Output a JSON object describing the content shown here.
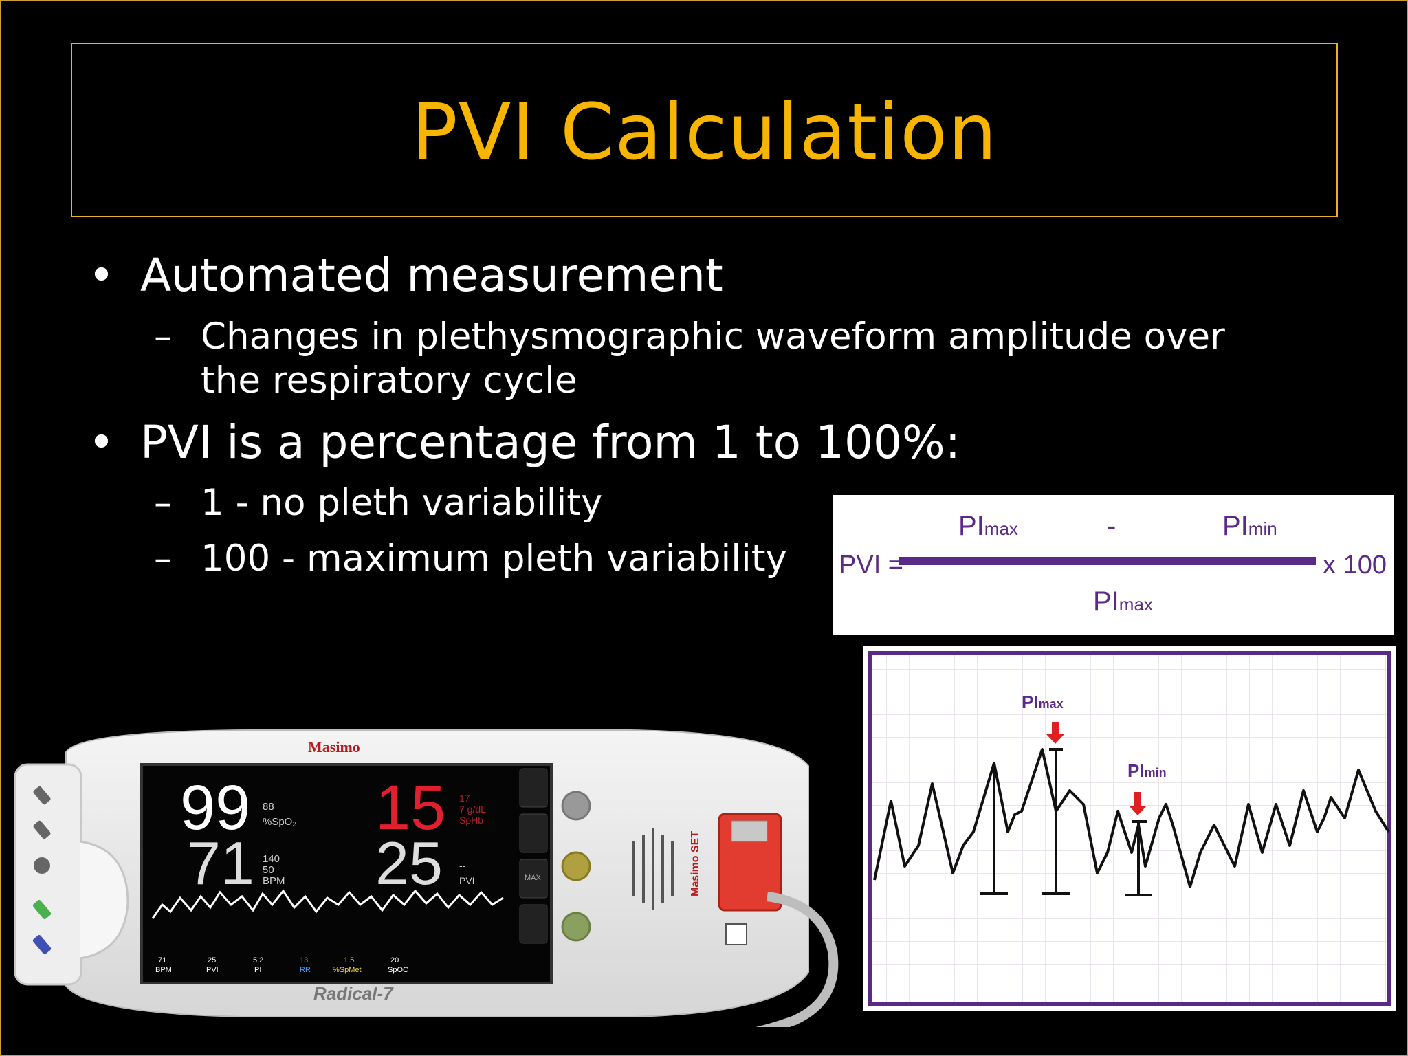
{
  "slide": {
    "title": "PVI Calculation",
    "bullets": [
      {
        "text": "Automated measurement",
        "sub": [
          "Changes in plethysmographic waveform amplitude over",
          "the respiratory cycle"
        ]
      },
      {
        "text": "PVI is a percentage from 1 to 100%:",
        "sub": [
          "1 - no pleth variability",
          "100 - maximum pleth variability"
        ]
      }
    ],
    "bullet_symbol": "•",
    "dash_symbol": "–"
  },
  "formula": {
    "lhs": "PVI =",
    "pi": "PI",
    "max_sub": "max",
    "min_sub": "min",
    "minus": "-",
    "times": "x 100"
  },
  "waveform_chart": {
    "pi_max_label": "PI",
    "pi_max_sub": "max",
    "pi_min_label": "PI",
    "pi_min_sub": "min"
  },
  "device": {
    "brand": "Masimo",
    "model": "Radical-7",
    "side_brand": "Masimo SET",
    "spo2_value": "99",
    "spo2_small": "88",
    "spo2_unit": "%SpO₂",
    "pr_value": "71",
    "pr_small": [
      "140",
      "50"
    ],
    "pr_unit": "BPM",
    "sphb_value": "15",
    "sphb_small": [
      "17",
      "7 g/dL"
    ],
    "sphb_unit": "SpHb",
    "pvi_value": "25",
    "pvi_small": "--",
    "pvi_unit": "PVI",
    "bottom_params": [
      {
        "value": "71",
        "label": "BPM",
        "color": "#ffffff"
      },
      {
        "value": "25",
        "label": "PVI",
        "color": "#ffffff"
      },
      {
        "value": "5.2",
        "label": "PI",
        "color": "#ffffff"
      },
      {
        "value": "13",
        "label": "RR",
        "color": "#3aa0ff"
      },
      {
        "value": "1.5",
        "label": "%SpMet",
        "color": "#f5d53c"
      },
      {
        "value": "20",
        "label": "SpOC",
        "color": "#ffffff"
      }
    ],
    "side_button": "MAX"
  },
  "colors": {
    "title": "#f7b500",
    "frame": "#e8b320",
    "formula": "#5b2a86",
    "arrow": "#e02020"
  }
}
